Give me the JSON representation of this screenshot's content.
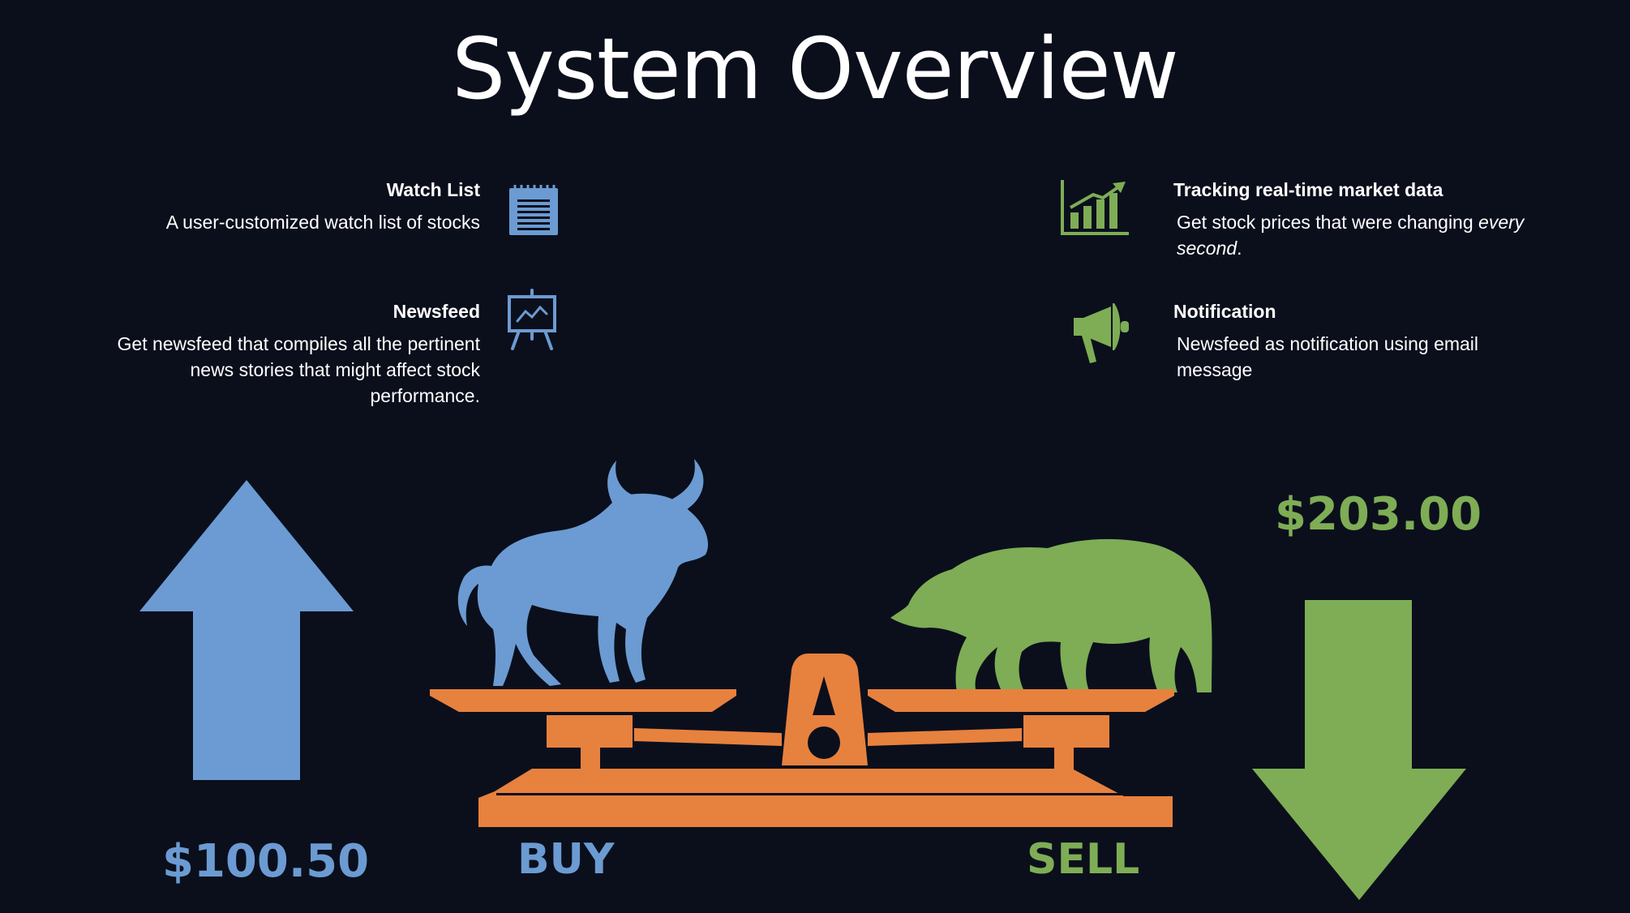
{
  "title": "System Overview",
  "colors": {
    "background": "#0b0f1c",
    "blue": "#6b9bd2",
    "green": "#7ead55",
    "orange": "#e7813e",
    "text": "#ffffff"
  },
  "features": {
    "watch_list": {
      "title": "Watch List",
      "description": "A user-customized watch list of stocks",
      "icon": "notepad-icon"
    },
    "newsfeed": {
      "title": "Newsfeed",
      "description_lines": [
        "Get newsfeed that compiles all the pertinent",
        "news stories that might affect stock",
        "performance."
      ],
      "icon": "presentation-board-icon"
    },
    "tracking": {
      "title": "Tracking real-time market data",
      "description_prefix": "Get stock prices that were changing ",
      "description_emph_1": "every",
      "description_emph_2": "second",
      "description_suffix": ".",
      "icon": "bar-chart-growth-icon"
    },
    "notification": {
      "title": "Notification",
      "description_lines": [
        "Newsfeed as notification using email",
        "message"
      ],
      "icon": "megaphone-icon"
    }
  },
  "illustration": {
    "buy_price": "$100.50",
    "sell_price": "$203.00",
    "buy_label": "BUY",
    "sell_label": "SELL",
    "icons": [
      "up-arrow-icon",
      "bull-icon",
      "balance-scale-icon",
      "bear-icon",
      "down-arrow-icon"
    ]
  }
}
